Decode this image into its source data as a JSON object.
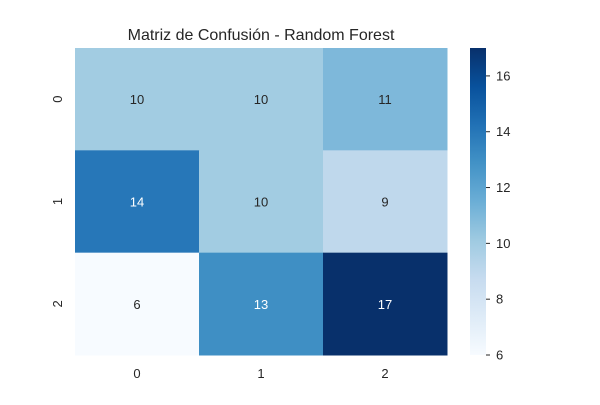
{
  "chart_data": {
    "type": "heatmap",
    "title": "Matriz de Confusión - Random Forest",
    "xlabel": "",
    "ylabel": "",
    "x_categories": [
      "0",
      "1",
      "2"
    ],
    "y_categories": [
      "0",
      "1",
      "2"
    ],
    "values": [
      [
        10,
        10,
        11
      ],
      [
        14,
        10,
        9
      ],
      [
        6,
        13,
        17
      ]
    ],
    "colormap": "Blues",
    "color_range": [
      6,
      17
    ],
    "colorbar_ticks": [
      "6",
      "8",
      "10",
      "12",
      "14",
      "16"
    ],
    "colorbar": true,
    "annotations": true,
    "grid": false
  }
}
